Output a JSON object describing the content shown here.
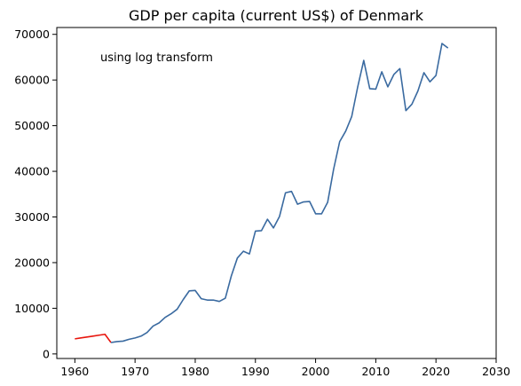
{
  "chart_data": {
    "type": "line",
    "title": "GDP per capita (current US$) of Denmark",
    "xlabel": "",
    "ylabel": "",
    "annotation": "using log transform",
    "xlim": [
      1957,
      2030
    ],
    "ylim": [
      -1000,
      71500
    ],
    "x_ticks": [
      1960,
      1970,
      1980,
      1990,
      2000,
      2010,
      2020,
      2030
    ],
    "y_ticks": [
      0,
      10000,
      20000,
      30000,
      40000,
      50000,
      60000,
      70000
    ],
    "grid": false,
    "series": [
      {
        "color": "#e8150d",
        "x": [
          1960,
          1961,
          1962,
          1963,
          1964,
          1965,
          1966
        ],
        "y": [
          3300,
          3500,
          3700,
          3900,
          4100,
          4300,
          2500
        ]
      },
      {
        "color": "#3a6aa0",
        "x": [
          1966,
          1967,
          1968,
          1969,
          1970,
          1971,
          1972,
          1973,
          1974,
          1975,
          1976,
          1977,
          1978,
          1979,
          1980,
          1981,
          1982,
          1983,
          1984,
          1985,
          1986,
          1987,
          1988,
          1989,
          1990,
          1991,
          1992,
          1993,
          1994,
          1995,
          1996,
          1997,
          1998,
          1999,
          2000,
          2001,
          2002,
          2003,
          2004,
          2005,
          2006,
          2007,
          2008,
          2009,
          2010,
          2011,
          2012,
          2013,
          2014,
          2015,
          2016,
          2017,
          2018,
          2019,
          2020,
          2021,
          2022
        ],
        "y": [
          2500,
          2700,
          2800,
          3200,
          3500,
          3900,
          4700,
          6100,
          6800,
          8000,
          8800,
          9800,
          11900,
          13800,
          13900,
          12100,
          11800,
          11800,
          11500,
          12200,
          17100,
          21000,
          22500,
          21900,
          26900,
          27000,
          29500,
          27600,
          30100,
          35300,
          35600,
          32800,
          33300,
          33400,
          30700,
          30700,
          33200,
          40500,
          46500,
          48800,
          52000,
          58500,
          64300,
          58100,
          58000,
          61800,
          58500,
          61200,
          62500,
          53300,
          54700,
          57600,
          61600,
          59600,
          61000,
          68000,
          67000
        ]
      }
    ]
  }
}
